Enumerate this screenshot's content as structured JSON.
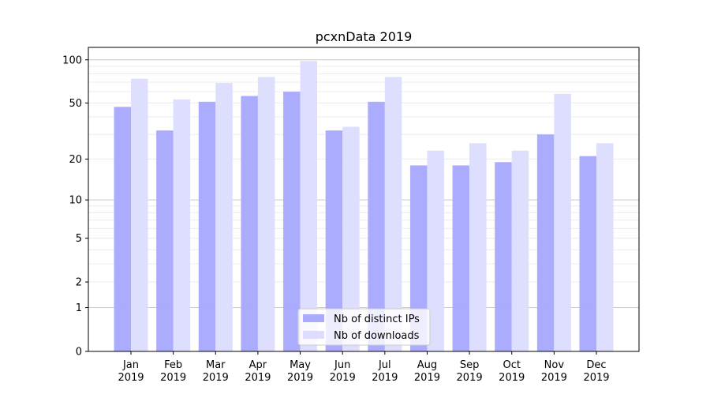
{
  "chart_data": {
    "type": "bar",
    "title": "pcxnData 2019",
    "xlabel": "",
    "ylabel": "",
    "yscale": "log(y+1)",
    "ylim": [
      0,
      122
    ],
    "yticks": [
      0,
      1,
      2,
      5,
      10,
      20,
      50,
      100
    ],
    "grid": true,
    "legend_placement": "bottom-center",
    "categories": [
      "Jan\n2019",
      "Feb\n2019",
      "Mar\n2019",
      "Apr\n2019",
      "May\n2019",
      "Jun\n2019",
      "Jul\n2019",
      "Aug\n2019",
      "Sep\n2019",
      "Oct\n2019",
      "Nov\n2019",
      "Dec\n2019"
    ],
    "series": [
      {
        "name": "Nb of distinct IPs",
        "color": "#aaaaff",
        "values": [
          47,
          32,
          51,
          56,
          60,
          32,
          51,
          18,
          18,
          19,
          30,
          21
        ]
      },
      {
        "name": "Nb of downloads",
        "color": "#ddddff",
        "values": [
          74,
          53,
          69,
          76,
          98,
          34,
          76,
          23,
          26,
          23,
          58,
          26
        ]
      }
    ]
  }
}
